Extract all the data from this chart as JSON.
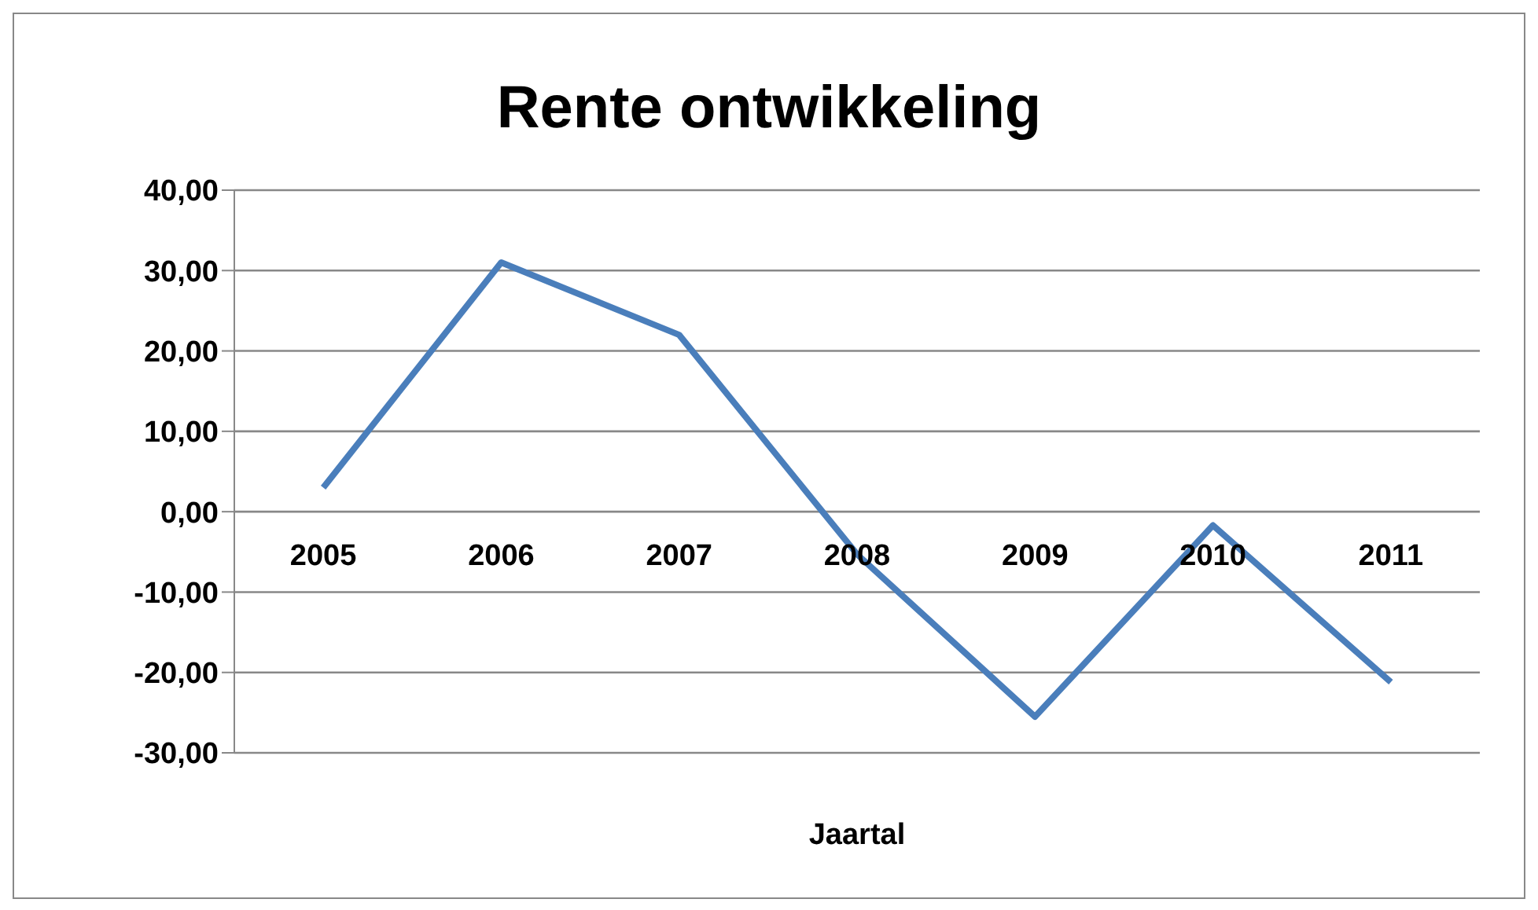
{
  "chart_data": {
    "type": "line",
    "title": "Rente ontwikkeling",
    "xlabel": "Jaartal",
    "categories": [
      "2005",
      "2006",
      "2007",
      "2008",
      "2009",
      "2010",
      "2011"
    ],
    "series": [
      {
        "color": "#4a7ebb",
        "values": [
          3,
          31,
          22,
          -5.3,
          -25.5,
          -1.7,
          -21.2
        ]
      }
    ],
    "ylim": [
      -30,
      40
    ],
    "yticks": [
      {
        "value": -30,
        "label": "-30,00"
      },
      {
        "value": -20,
        "label": "-20,00"
      },
      {
        "value": -10,
        "label": "-10,00"
      },
      {
        "value": 0,
        "label": "0,00"
      },
      {
        "value": 10,
        "label": "10,00"
      },
      {
        "value": 20,
        "label": "20,00"
      },
      {
        "value": 30,
        "label": "30,00"
      },
      {
        "value": 40,
        "label": "40,00"
      }
    ],
    "grid": "y",
    "legend": false,
    "marker": "none",
    "line_style": "solid"
  }
}
